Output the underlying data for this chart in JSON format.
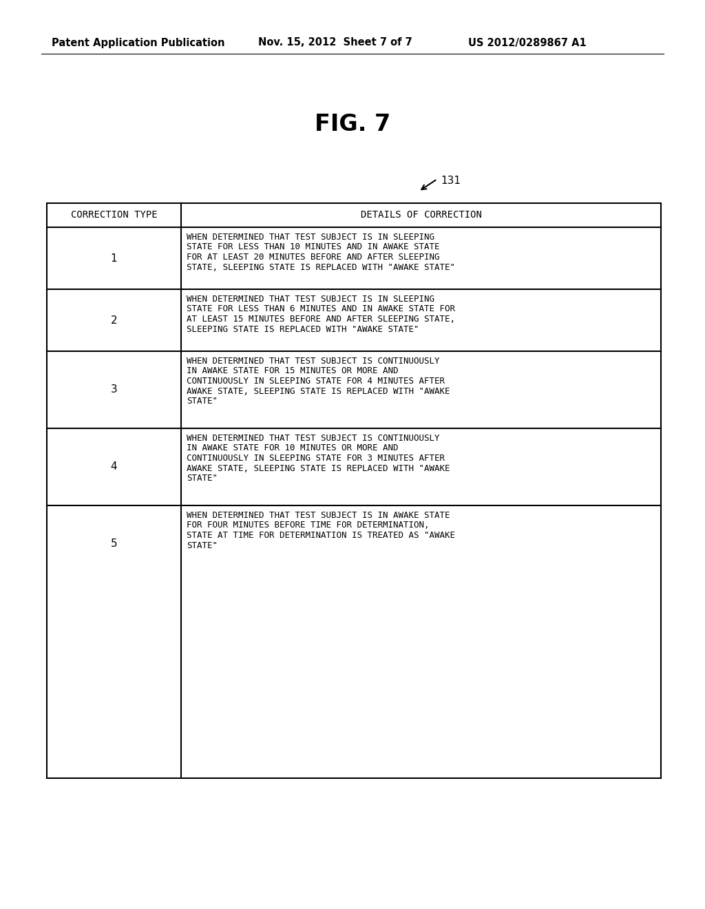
{
  "header_left": "Patent Application Publication",
  "header_middle": "Nov. 15, 2012  Sheet 7 of 7",
  "header_right": "US 2012/0289867 A1",
  "fig_label": "FIG. 7",
  "ref_number": "131",
  "table_col1_header": "CORRECTION TYPE",
  "table_col2_header": "DETAILS OF CORRECTION",
  "rows": [
    {
      "type": "1",
      "detail": "WHEN DETERMINED THAT TEST SUBJECT IS IN SLEEPING\nSTATE FOR LESS THAN 10 MINUTES AND IN AWAKE STATE\nFOR AT LEAST 20 MINUTES BEFORE AND AFTER SLEEPING\nSTATE, SLEEPING STATE IS REPLACED WITH \"AWAKE STATE\""
    },
    {
      "type": "2",
      "detail": "WHEN DETERMINED THAT TEST SUBJECT IS IN SLEEPING\nSTATE FOR LESS THAN 6 MINUTES AND IN AWAKE STATE FOR\nAT LEAST 15 MINUTES BEFORE AND AFTER SLEEPING STATE,\nSLEEPING STATE IS REPLACED WITH \"AWAKE STATE\""
    },
    {
      "type": "3",
      "detail": "WHEN DETERMINED THAT TEST SUBJECT IS CONTINUOUSLY\nIN AWAKE STATE FOR 15 MINUTES OR MORE AND\nCONTINUOUSLY IN SLEEPING STATE FOR 4 MINUTES AFTER\nAWAKE STATE, SLEEPING STATE IS REPLACED WITH \"AWAKE\nSTATE\""
    },
    {
      "type": "4",
      "detail": "WHEN DETERMINED THAT TEST SUBJECT IS CONTINUOUSLY\nIN AWAKE STATE FOR 10 MINUTES OR MORE AND\nCONTINUOUSLY IN SLEEPING STATE FOR 3 MINUTES AFTER\nAWAKE STATE, SLEEPING STATE IS REPLACED WITH \"AWAKE\nSTATE\""
    },
    {
      "type": "5",
      "detail": "WHEN DETERMINED THAT TEST SUBJECT IS IN AWAKE STATE\nFOR FOUR MINUTES BEFORE TIME FOR DETERMINATION,\nSTATE AT TIME FOR DETERMINATION IS TREATED AS \"AWAKE\nSTATE\""
    }
  ],
  "background_color": "#ffffff",
  "text_color": "#000000",
  "table_border_color": "#000000",
  "header_fontsize": 10.5,
  "fig_label_fontsize": 24,
  "ref_fontsize": 11,
  "table_header_fontsize": 10,
  "table_body_fontsize": 9.0,
  "table_number_fontsize": 11
}
